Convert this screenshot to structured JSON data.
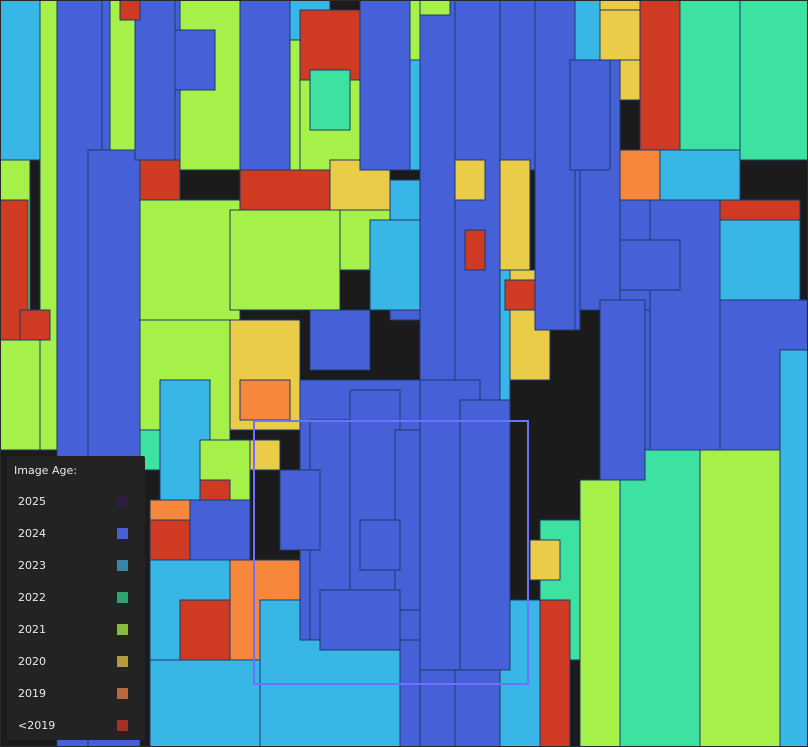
{
  "legend": {
    "title": "Image Age:",
    "items": [
      {
        "label": "2025",
        "color": "#2d1d3e"
      },
      {
        "label": "2024",
        "color": "#4860d2"
      },
      {
        "label": "2023",
        "color": "#3a86a6"
      },
      {
        "label": "2022",
        "color": "#2fa46e"
      },
      {
        "label": "2021",
        "color": "#8abb3e"
      },
      {
        "label": "2020",
        "color": "#b59a3e"
      },
      {
        "label": "2019",
        "color": "#b9693a"
      },
      {
        "label": "<2019",
        "color": "#a53222"
      }
    ]
  },
  "map_colors": {
    "2024": "#4660d8",
    "2023": "#38b6e6",
    "2022": "#3ee2a0",
    "2021": "#a6f04a",
    "2020": "#ebcc48",
    "2019": "#f7873a",
    "older": "#cf3b22",
    "outline": "#1c3a6a",
    "selection": "#6a72ff"
  }
}
